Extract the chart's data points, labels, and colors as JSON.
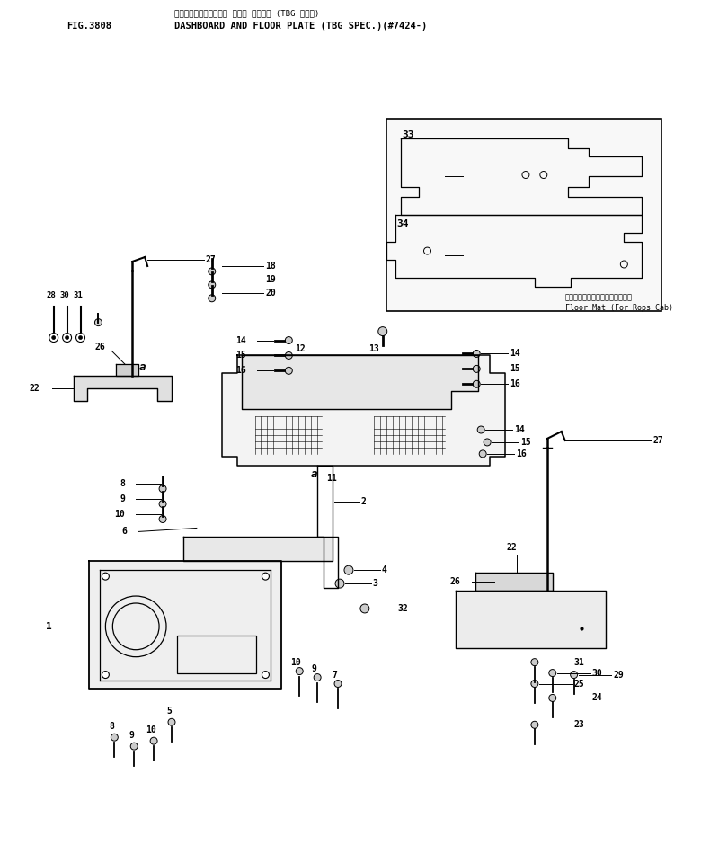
{
  "title_line1": "ダッシュボード・キャビ フロア プレート (TBG ショウ)",
  "title_line2": "DASHBOARD AND FLOOR PLATE (TBG SPEC.)(#7424-)",
  "fig_number": "FIG.3808",
  "background_color": "#ffffff",
  "line_color": "#000000",
  "text_color": "#000000",
  "inset_label_jp": "フロアマット（ロプスキャブ用）",
  "inset_label_en": "Floor Mat (For Rops Cab)"
}
